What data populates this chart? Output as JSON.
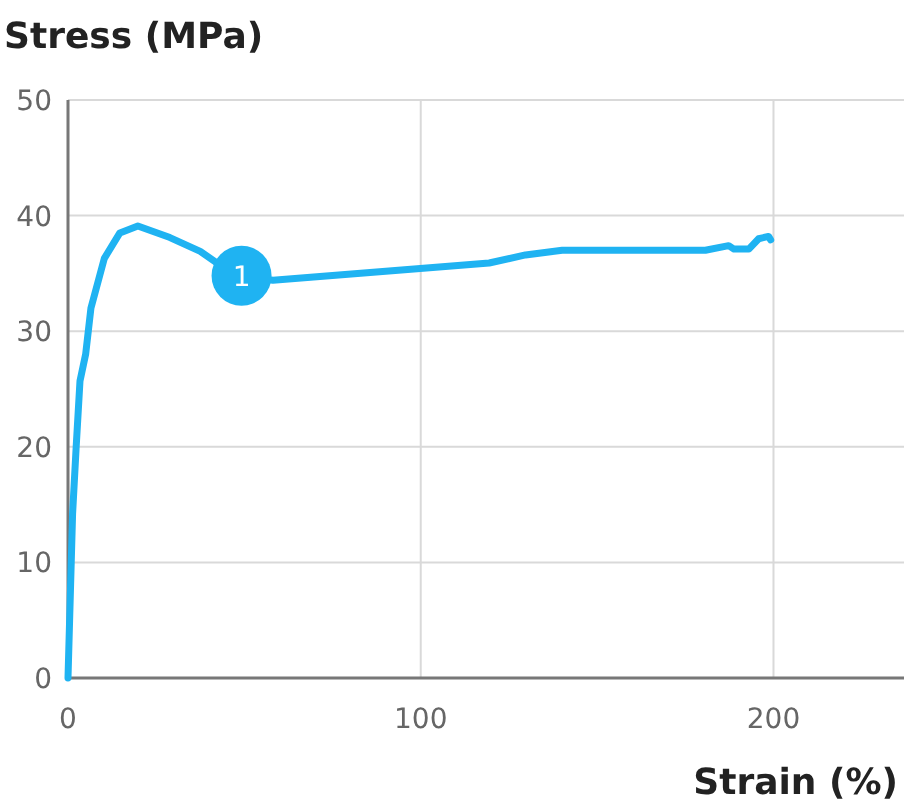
{
  "chart_data": {
    "type": "line",
    "ylabel": "Stress (MPa)",
    "xlabel": "Strain (%)",
    "xlim": [
      0,
      237
    ],
    "xticks": [
      0,
      100,
      200
    ],
    "ylim": [
      0,
      50
    ],
    "yticks": [
      0,
      10,
      20,
      30,
      40,
      50
    ],
    "grid": true,
    "marker": "none",
    "line_style": "solid",
    "series": [
      {
        "color": "#1fb3f2",
        "x": [
          0,
          1.3,
          2.3,
          3.4,
          5.0,
          6.5,
          10.3,
          14.7,
          19.8,
          28.9,
          37.5,
          43.2,
          49.2,
          58.1,
          119.4,
          129.7,
          140.1,
          180.7,
          187.3,
          188.8,
          193,
          195.8,
          198.6,
          199.2
        ],
        "values": [
          0,
          14.2,
          19.9,
          25.7,
          28.0,
          32.0,
          36.3,
          38.5,
          39.1,
          38.1,
          36.9,
          35.7,
          34.8,
          34.4,
          35.9,
          36.6,
          37.0,
          37.0,
          37.4,
          37.1,
          37.1,
          38.0,
          38.2,
          37.9
        ]
      }
    ],
    "annotations": [
      {
        "text": "1",
        "x": 49.2,
        "y": 34.8
      }
    ]
  }
}
